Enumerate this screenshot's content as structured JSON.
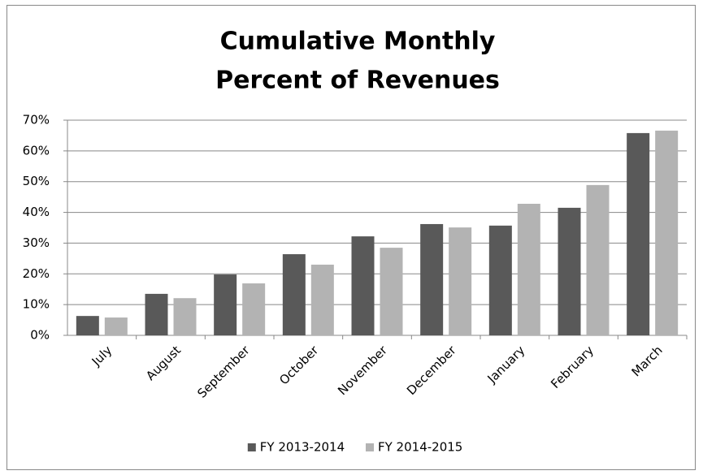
{
  "chart_data": {
    "type": "bar",
    "title": [
      "Cumulative Monthly",
      "Percent of Revenues"
    ],
    "categories": [
      "July",
      "August",
      "September",
      "October",
      "November",
      "December",
      "January",
      "February",
      "March"
    ],
    "series": [
      {
        "name": "FY 2013-2014",
        "color": "#595959",
        "values": [
          6.3,
          13.5,
          19.8,
          26.4,
          32.2,
          36.2,
          35.7,
          41.5,
          65.8
        ]
      },
      {
        "name": "FY 2014-2015",
        "color": "#b3b3b3",
        "values": [
          5.8,
          12.1,
          16.9,
          23.0,
          28.5,
          35.1,
          42.8,
          48.9,
          66.6
        ]
      }
    ],
    "ylim": [
      0,
      70
    ],
    "yticks": [
      {
        "value": 0,
        "label": "0%"
      },
      {
        "value": 10,
        "label": "10%"
      },
      {
        "value": 20,
        "label": "20%"
      },
      {
        "value": 30,
        "label": "30%"
      },
      {
        "value": 40,
        "label": "40%"
      },
      {
        "value": 50,
        "label": "50%"
      },
      {
        "value": 60,
        "label": "60%"
      },
      {
        "value": 70,
        "label": "70%"
      }
    ],
    "grid": true,
    "legend": "bottom"
  }
}
